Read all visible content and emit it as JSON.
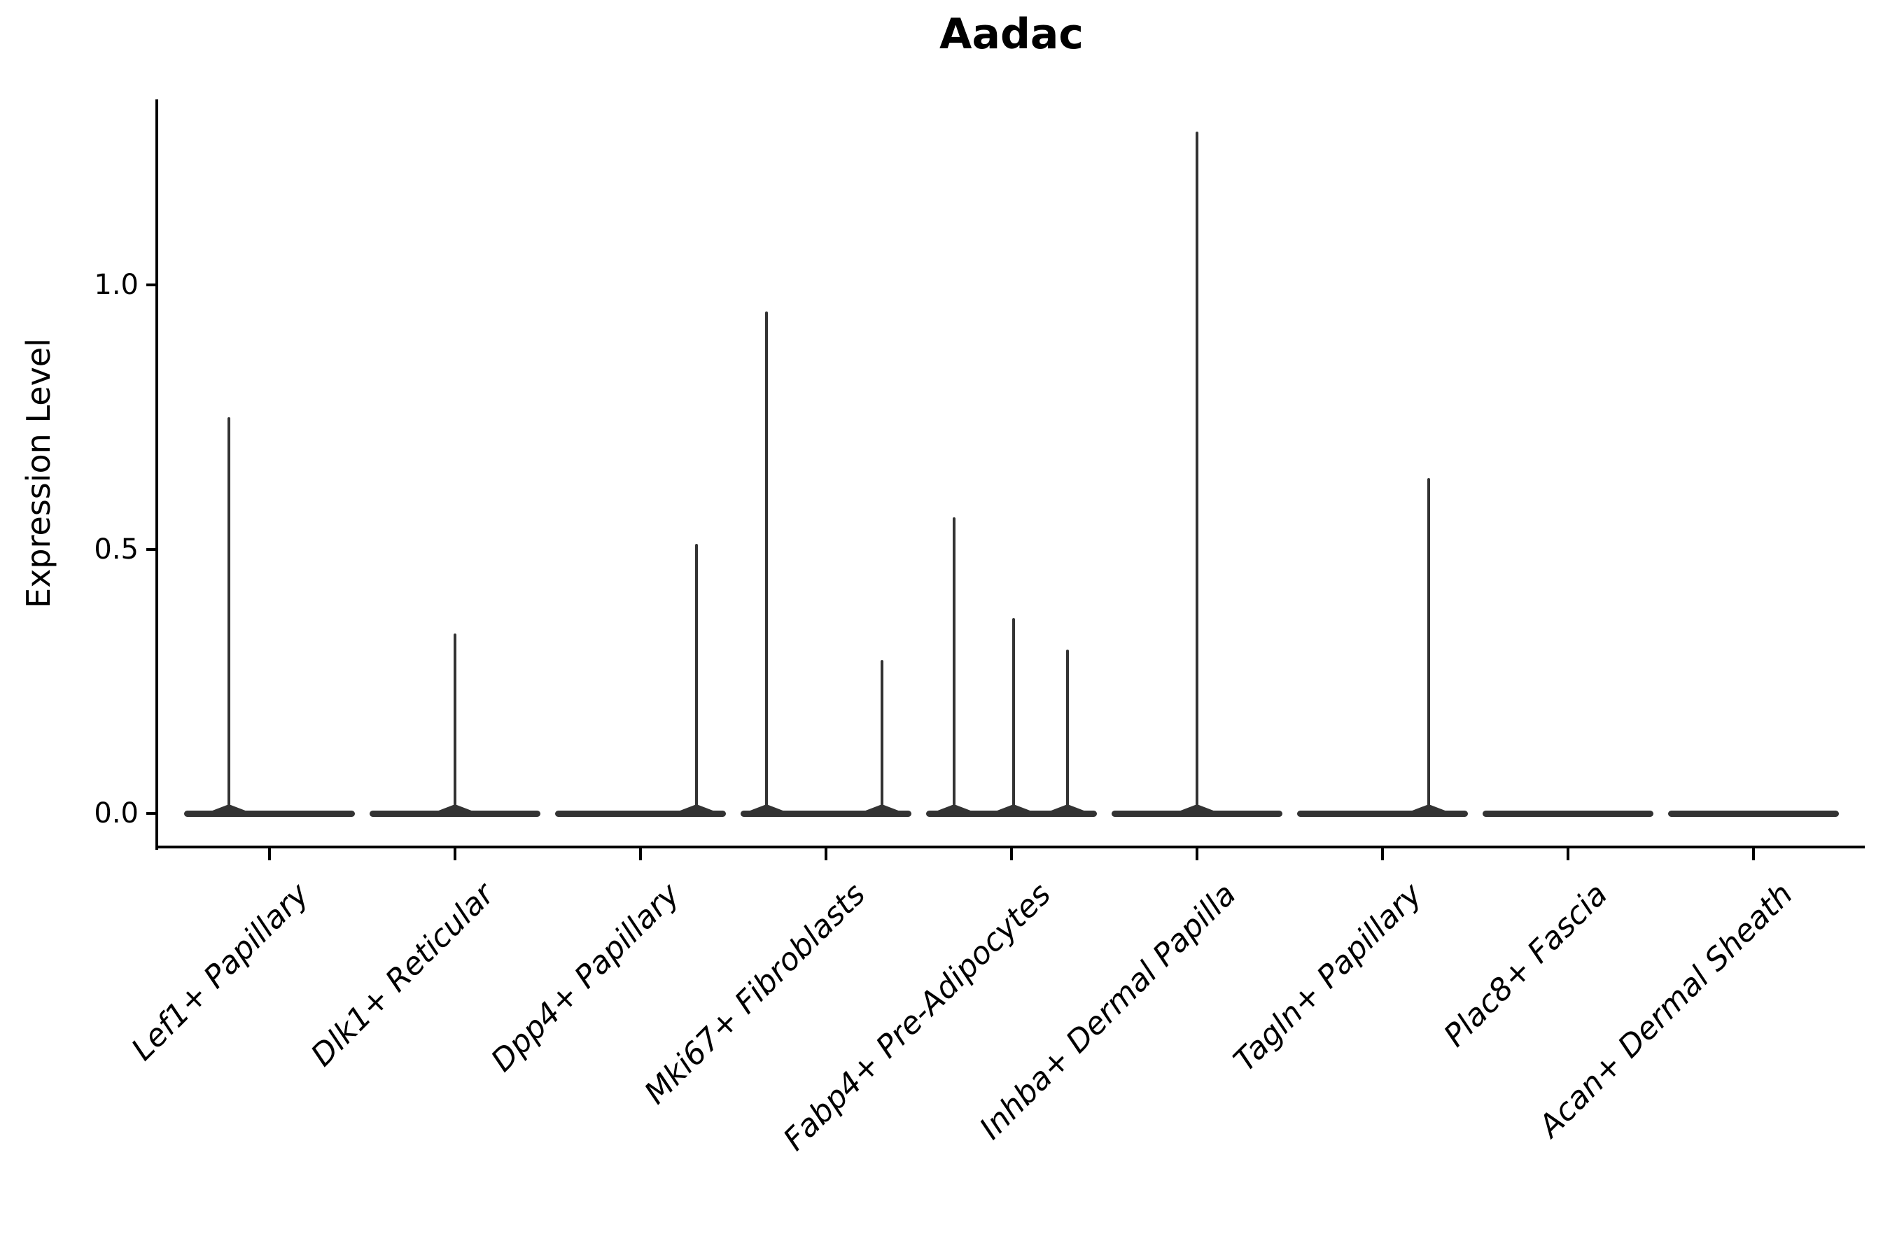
{
  "chart_data": {
    "type": "violin",
    "title": "Aadac",
    "ylabel": "Expression Level",
    "xlabel": "",
    "yticklabels": [
      "0.0",
      "0.5",
      "1.0"
    ],
    "ytick_values": [
      0.0,
      0.5,
      1.0
    ],
    "ylim": [
      -0.065,
      1.35
    ],
    "grid": false,
    "legend": "none",
    "categories": [
      "Lef1+ Papillary",
      "Dlk1+ Reticular",
      "Dpp4+ Papillary",
      "Mki67+ Fibroblasts",
      "Fabp4+ Pre-Adipocytes",
      "Inhba+ Dermal Papilla",
      "Tagln+ Papillary",
      "Plac8+ Fascia",
      "Acan+ Dermal Sheath"
    ],
    "violins": [
      {
        "category": "Lef1+ Papillary",
        "baseline": 0.0,
        "spikes": [
          {
            "value": 0.75,
            "dx": -0.22
          }
        ]
      },
      {
        "category": "Dlk1+ Reticular",
        "baseline": 0.0,
        "spikes": [
          {
            "value": 0.34,
            "dx": 0.0
          }
        ]
      },
      {
        "category": "Dpp4+ Papillary",
        "baseline": 0.0,
        "spikes": [
          {
            "value": 0.51,
            "dx": 0.3
          }
        ]
      },
      {
        "category": "Mki67+ Fibroblasts",
        "baseline": 0.0,
        "spikes": [
          {
            "value": 0.95,
            "dx": -0.32
          },
          {
            "value": 0.29,
            "dx": 0.3
          }
        ]
      },
      {
        "category": "Fabp4+ Pre-Adipocytes",
        "baseline": 0.0,
        "spikes": [
          {
            "value": 0.56,
            "dx": -0.31
          },
          {
            "value": 0.37,
            "dx": 0.01
          },
          {
            "value": 0.31,
            "dx": 0.3
          }
        ]
      },
      {
        "category": "Inhba+ Dermal Papilla",
        "baseline": 0.0,
        "spikes": [
          {
            "value": 1.29,
            "dx": 0.0
          }
        ]
      },
      {
        "category": "Tagln+ Papillary",
        "baseline": 0.0,
        "spikes": [
          {
            "value": 0.635,
            "dx": 0.25
          }
        ]
      },
      {
        "category": "Plac8+ Fascia",
        "baseline": 0.0,
        "spikes": []
      },
      {
        "category": "Acan+ Dermal Sheath",
        "baseline": 0.0,
        "spikes": []
      }
    ],
    "colors": {
      "violin": "#333333",
      "axes": "#000000",
      "text": "#000000",
      "background": "#ffffff"
    }
  }
}
